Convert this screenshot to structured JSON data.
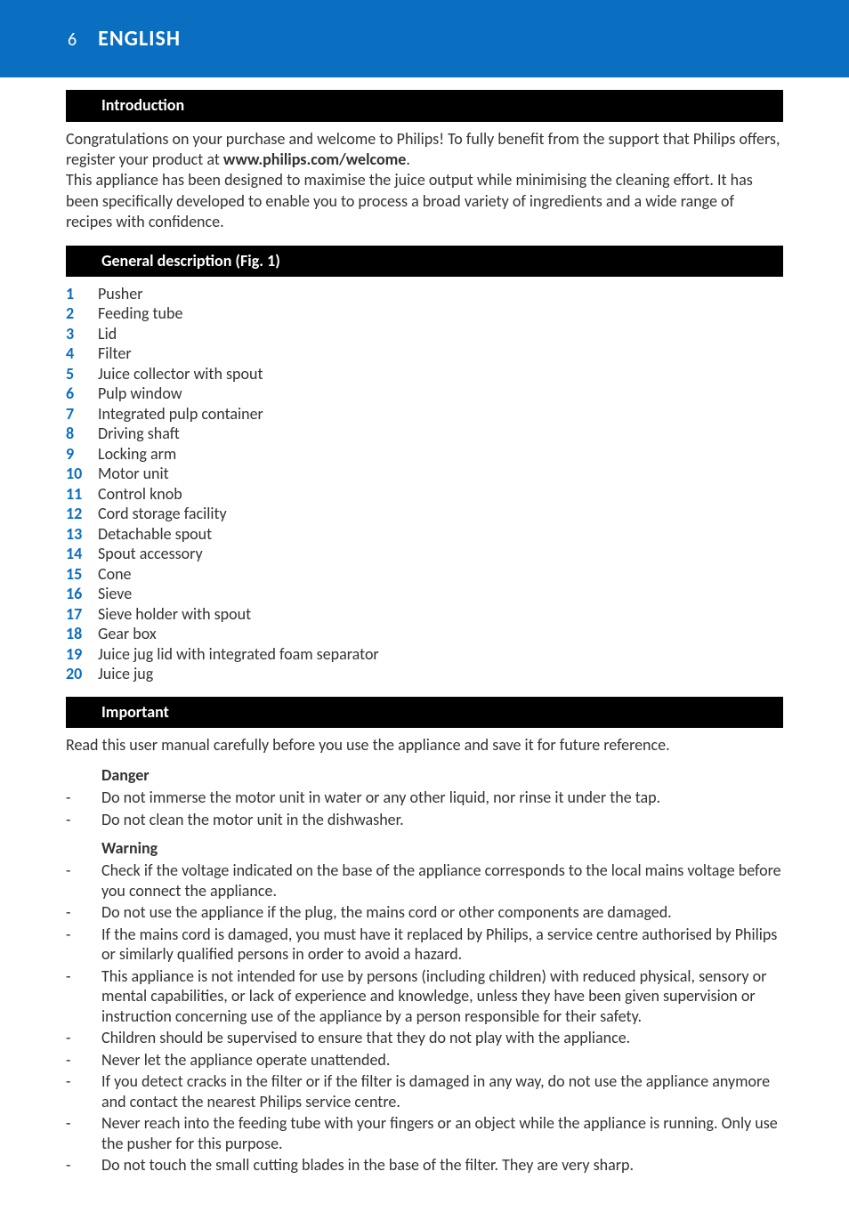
{
  "colors": {
    "header_bg": "#0a6ec1",
    "section_bar_bg": "#000000",
    "accent": "#0a6ec1",
    "text": "#333333",
    "page_bg": "#ffffff"
  },
  "header": {
    "page_number": "6",
    "language": "ENGLISH"
  },
  "sections": {
    "introduction": {
      "title": "Introduction",
      "para1_pre": "Congratulations on your purchase and welcome to Philips! To fully benefit from the support that Philips offers, register your product at ",
      "para1_bold": "www.philips.com/welcome",
      "para1_post": ".",
      "para2": "This appliance has been designed to maximise the juice output while minimising the cleaning effort. It has been specifically developed to enable you to process a broad variety of ingredients and a wide range of recipes with confidence."
    },
    "general_description": {
      "title": "General description (Fig. 1)",
      "items": [
        "Pusher",
        "Feeding tube",
        "Lid",
        "Filter",
        "Juice collector with spout",
        "Pulp window",
        "Integrated pulp container",
        "Driving shaft",
        "Locking arm",
        "Motor unit",
        "Control knob",
        "Cord storage facility",
        "Detachable spout",
        "Spout accessory",
        "Cone",
        "Sieve",
        "Sieve holder with spout",
        "Gear box",
        "Juice jug lid with integrated foam separator",
        "Juice jug"
      ]
    },
    "important": {
      "title": "Important",
      "lead": "Read this user manual carefully before you use the appliance and save it for future reference.",
      "danger": {
        "title": "Danger",
        "items": [
          "Do not immerse the motor unit in water or any other liquid, nor rinse it under the tap.",
          "Do not clean the motor unit in the dishwasher."
        ]
      },
      "warning": {
        "title": "Warning",
        "items": [
          "Check if the voltage indicated on the base of the appliance corresponds to the local mains voltage before you connect the appliance.",
          "Do not use the appliance if the plug, the mains cord or other components are damaged.",
          "If the mains cord is damaged, you must have it replaced by Philips, a service centre authorised by Philips or similarly qualified persons in order to avoid a hazard.",
          "This appliance is not intended for use by persons (including children) with reduced physical, sensory or mental capabilities, or lack of experience and knowledge, unless they have been given supervision or instruction concerning use of the appliance by a person responsible for their safety.",
          "Children should be supervised to ensure that they do not play with the appliance.",
          "Never let the appliance operate unattended.",
          "If you detect cracks in the filter or if the filter is damaged in any way, do not use the appliance anymore and contact the nearest Philips service centre.",
          "Never reach into the feeding tube with your fingers or an object while the appliance is running. Only use the pusher for this purpose.",
          "Do not touch the small cutting blades in the base of the filter. They are very sharp."
        ]
      }
    }
  }
}
